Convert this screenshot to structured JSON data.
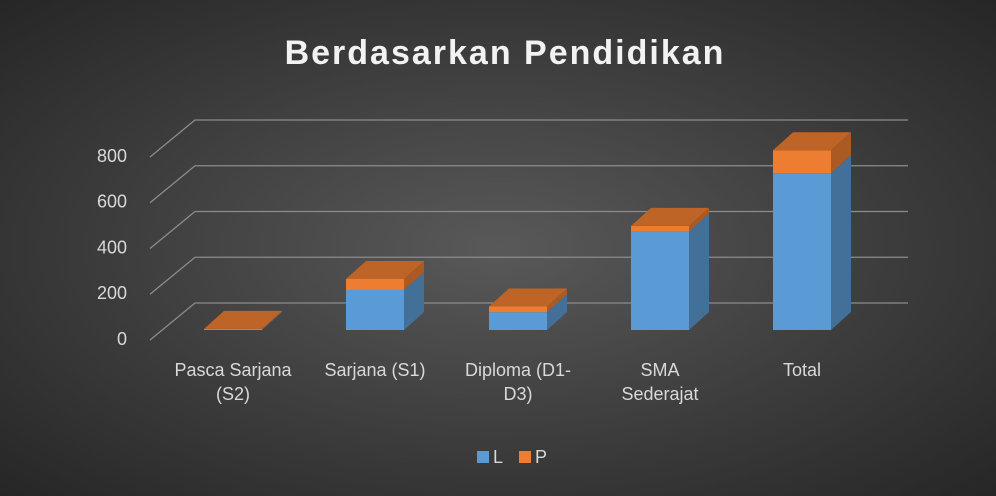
{
  "chart_data": {
    "type": "bar3d_stacked",
    "title": "Berdasarkan Pendidikan",
    "categories": [
      "Pasca Sarjana (S2)",
      "Sarjana (S1)",
      "Diploma (D1-D3)",
      "SMA Sederajat",
      "Total"
    ],
    "series": [
      {
        "name": "L",
        "color": "#5b9bd5",
        "values": [
          2,
          175,
          78,
          430,
          685
        ]
      },
      {
        "name": "P",
        "color": "#ed7d31",
        "values": [
          3,
          48,
          25,
          25,
          101
        ]
      }
    ],
    "ylim": [
      0,
      800
    ],
    "yticks": [
      0,
      200,
      400,
      600,
      800
    ],
    "grid": true,
    "legend": "bottom"
  }
}
